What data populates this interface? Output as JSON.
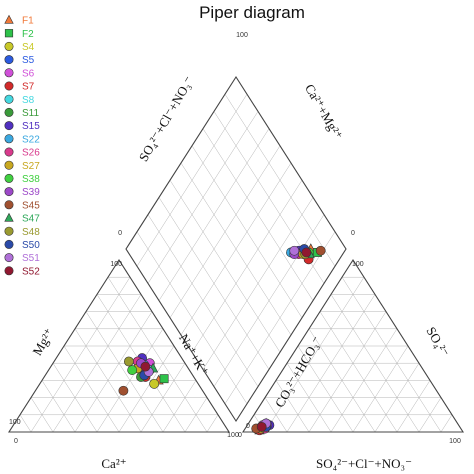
{
  "chart_data": {
    "type": "scatter",
    "title": "Piper diagram",
    "tick_labels": {
      "min": "0",
      "max": "100"
    },
    "axis_titles": {
      "diamond_upper_left": "SO₄²⁻+Cl⁻+NO₃⁻",
      "diamond_upper_right": "Ca²⁺+Mg²⁺",
      "cation_left": "Mg²⁺",
      "cation_right": "Na⁺+K⁺",
      "cation_bottom": "Ca²⁺",
      "anion_left": "CO₃²⁻+HCO₃⁻",
      "anion_right": "SO₄²⁻",
      "anion_bottom": "SO₄²⁻+Cl⁻+NO₃⁻"
    },
    "series": [
      {
        "name": "F1",
        "marker": "triangle",
        "color": "#f07838",
        "cation": [
          17,
          30,
          53
        ],
        "anion": [
          92,
          1,
          7
        ],
        "diamond": [
          16,
          84
        ]
      },
      {
        "name": "F2",
        "marker": "square",
        "color": "#2ec24a",
        "cation": [
          14,
          31,
          55
        ],
        "anion": [
          88,
          4,
          8
        ],
        "diamond": [
          12,
          86
        ]
      },
      {
        "name": "S4",
        "marker": "circle",
        "color": "#c8c828",
        "cation": [
          20,
          28,
          52
        ],
        "anion": [
          92,
          2,
          6
        ],
        "diamond": [
          18,
          80
        ]
      },
      {
        "name": "S5",
        "marker": "circle",
        "color": "#2a5ae0",
        "cation": [
          21,
          35,
          44
        ],
        "anion": [
          90,
          3,
          7
        ],
        "diamond": [
          20,
          78
        ]
      },
      {
        "name": "S6",
        "marker": "circle",
        "color": "#d050d8",
        "cation": [
          16,
          40,
          44
        ],
        "anion": [
          89,
          4,
          7
        ],
        "diamond": [
          22,
          76
        ]
      },
      {
        "name": "S7",
        "marker": "circle",
        "color": "#d22a2a",
        "cation": [
          22,
          32,
          46
        ],
        "anion": [
          92,
          1,
          7
        ],
        "diamond": [
          14,
          80
        ]
      },
      {
        "name": "S8",
        "marker": "circle",
        "color": "#44d8e0",
        "cation": [
          18,
          36,
          46
        ],
        "anion": [
          90,
          3,
          7
        ],
        "diamond": [
          19,
          79
        ]
      },
      {
        "name": "S11",
        "marker": "circle",
        "color": "#3a9a3a",
        "cation": [
          24,
          32,
          44
        ],
        "anion": [
          89,
          2,
          9
        ],
        "diamond": [
          18,
          80
        ]
      },
      {
        "name": "S15",
        "marker": "circle",
        "color": "#5030c0",
        "cation": [
          18,
          43,
          39
        ],
        "anion": [
          86,
          4,
          10
        ],
        "diamond": [
          21,
          78
        ]
      },
      {
        "name": "S22",
        "marker": "circle",
        "color": "#3aa8e0",
        "cation": [
          19,
          39,
          42
        ],
        "anion": [
          91,
          2,
          7
        ],
        "diamond": [
          24,
          74
        ]
      },
      {
        "name": "S26",
        "marker": "circle",
        "color": "#d83a8c",
        "cation": [
          21,
          41,
          38
        ],
        "anion": [
          89,
          2,
          9
        ],
        "diamond": [
          20,
          77
        ]
      },
      {
        "name": "S27",
        "marker": "circle",
        "color": "#c8a820",
        "cation": [
          23,
          37,
          40
        ],
        "anion": [
          91,
          2,
          7
        ],
        "diamond": [
          18,
          79
        ]
      },
      {
        "name": "S38",
        "marker": "circle",
        "color": "#40d040",
        "cation": [
          26,
          36,
          38
        ],
        "anion": [
          90,
          3,
          7
        ],
        "diamond": [
          16,
          82
        ]
      },
      {
        "name": "S39",
        "marker": "circle",
        "color": "#9c48c8",
        "cation": [
          20,
          40,
          40
        ],
        "anion": [
          87,
          4,
          9
        ],
        "diamond": [
          22,
          75
        ]
      },
      {
        "name": "S45",
        "marker": "circle",
        "color": "#a05030",
        "cation": [
          36,
          24,
          40
        ],
        "anion": [
          93,
          2,
          5
        ],
        "diamond": [
          11,
          88
        ]
      },
      {
        "name": "S47",
        "marker": "triangle",
        "color": "#2ea85a",
        "cation": [
          16,
          37,
          47
        ],
        "anion": [
          87,
          5,
          8
        ],
        "diamond": [
          15,
          82
        ]
      },
      {
        "name": "S48",
        "marker": "circle",
        "color": "#9a9a30",
        "cation": [
          25,
          41,
          34
        ],
        "anion": [
          88,
          4,
          8
        ],
        "diamond": [
          17,
          80
        ]
      },
      {
        "name": "S50",
        "marker": "circle",
        "color": "#2a4aa8",
        "cation": [
          22,
          33,
          45
        ],
        "anion": [
          88,
          3,
          9
        ],
        "diamond": [
          19,
          81
        ]
      },
      {
        "name": "S51",
        "marker": "circle",
        "color": "#b070d8",
        "cation": [
          19,
          35,
          46
        ],
        "anion": [
          87,
          5,
          8
        ],
        "diamond": [
          23,
          76
        ]
      },
      {
        "name": "S52",
        "marker": "circle",
        "color": "#901830",
        "cation": [
          19,
          38,
          43
        ],
        "anion": [
          90,
          3,
          7
        ],
        "diamond": [
          17,
          81
        ]
      }
    ]
  }
}
